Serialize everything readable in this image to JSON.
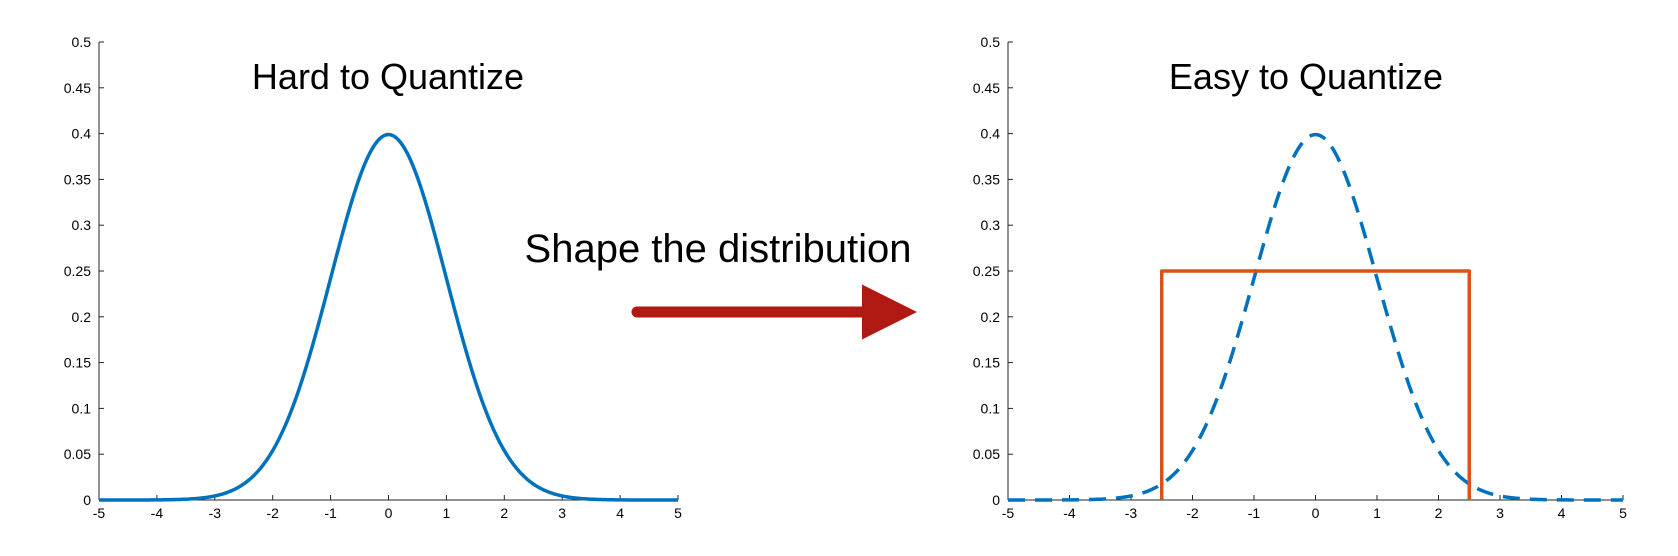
{
  "annotation": {
    "text": "Shape the distribution",
    "arrow_color": "#b01a12"
  },
  "chart_data": [
    {
      "type": "line",
      "title": "Hard to Quantize",
      "xlabel": "",
      "ylabel": "",
      "xlim": [
        -5,
        5
      ],
      "ylim": [
        0,
        0.5
      ],
      "x_ticks": [
        "-5",
        "-4",
        "-3",
        "-2",
        "-1",
        "0",
        "1",
        "2",
        "3",
        "4",
        "5"
      ],
      "y_ticks": [
        "0",
        "0.05",
        "0.1",
        "0.15",
        "0.2",
        "0.25",
        "0.3",
        "0.35",
        "0.4",
        "0.45",
        "0.5"
      ],
      "grid": false,
      "series": [
        {
          "style": "solid",
          "color": "#0072bd",
          "x": [
            -5,
            -4,
            -3.5,
            -3,
            -2.75,
            -2.5,
            -2.25,
            -2,
            -1.75,
            -1.5,
            -1.25,
            -1,
            -0.75,
            -0.5,
            -0.25,
            0,
            0.25,
            0.5,
            0.75,
            1,
            1.25,
            1.5,
            1.75,
            2,
            2.25,
            2.5,
            2.75,
            3,
            3.5,
            4,
            5
          ],
          "y": [
            0,
            0.0001,
            0.0009,
            0.0044,
            0.0091,
            0.0175,
            0.0317,
            0.054,
            0.0863,
            0.1295,
            0.1826,
            0.242,
            0.3011,
            0.3521,
            0.3867,
            0.3989,
            0.3867,
            0.3521,
            0.3011,
            0.242,
            0.1826,
            0.1295,
            0.0863,
            0.054,
            0.0317,
            0.0175,
            0.0091,
            0.0044,
            0.0009,
            0.0001,
            0
          ]
        }
      ]
    },
    {
      "type": "line",
      "title": "Easy to Quantize",
      "xlabel": "",
      "ylabel": "",
      "xlim": [
        -5,
        5
      ],
      "ylim": [
        0,
        0.5
      ],
      "x_ticks": [
        "-5",
        "-4",
        "-3",
        "-2",
        "-1",
        "0",
        "1",
        "2",
        "3",
        "4",
        "5"
      ],
      "y_ticks": [
        "0",
        "0.05",
        "0.1",
        "0.15",
        "0.2",
        "0.25",
        "0.3",
        "0.35",
        "0.4",
        "0.45",
        "0.5"
      ],
      "grid": false,
      "series": [
        {
          "style": "dashed",
          "color": "#0072bd",
          "x": [
            -5,
            -4,
            -3.5,
            -3,
            -2.75,
            -2.5,
            -2.25,
            -2,
            -1.75,
            -1.5,
            -1.25,
            -1,
            -0.75,
            -0.5,
            -0.25,
            0,
            0.25,
            0.5,
            0.75,
            1,
            1.25,
            1.5,
            1.75,
            2,
            2.25,
            2.5,
            2.75,
            3,
            3.5,
            4,
            5
          ],
          "y": [
            0,
            0.0001,
            0.0009,
            0.0044,
            0.0091,
            0.0175,
            0.0317,
            0.054,
            0.0863,
            0.1295,
            0.1826,
            0.242,
            0.3011,
            0.3521,
            0.3867,
            0.3989,
            0.3867,
            0.3521,
            0.3011,
            0.242,
            0.1826,
            0.1295,
            0.0863,
            0.054,
            0.0317,
            0.0175,
            0.0091,
            0.0044,
            0.0009,
            0.0001,
            0
          ]
        },
        {
          "style": "solid",
          "color": "#d95319",
          "x": [
            -2.5,
            -2.5,
            2.5,
            2.5
          ],
          "y": [
            0,
            0.25,
            0.25,
            0
          ]
        }
      ]
    }
  ]
}
